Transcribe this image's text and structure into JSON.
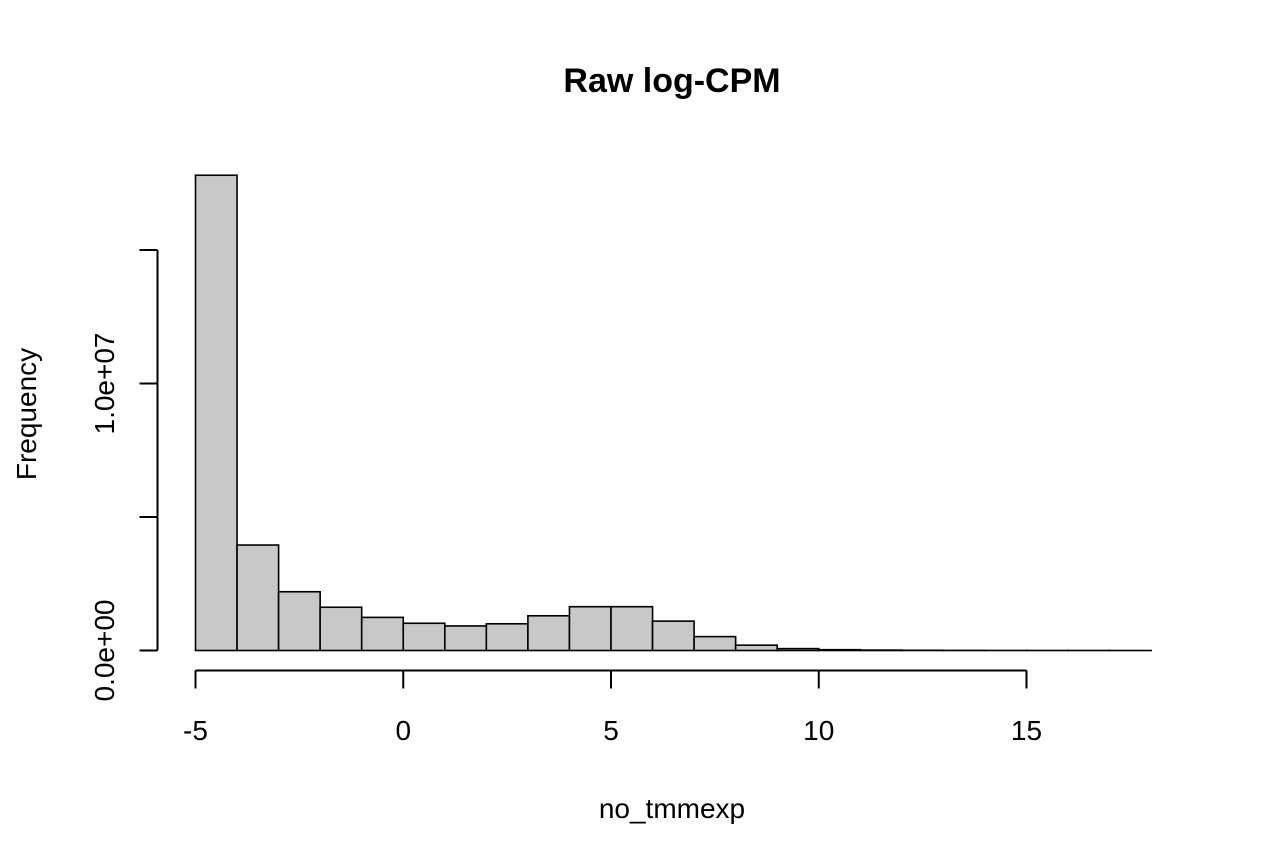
{
  "chart_data": {
    "type": "bar",
    "histogram": true,
    "title": "Raw log-CPM",
    "xlabel": "no_tmmexp",
    "ylabel": "Frequency",
    "bin_edges": [
      -5,
      -4,
      -3,
      -2,
      -1,
      0,
      1,
      2,
      3,
      4,
      5,
      6,
      7,
      8,
      9,
      10,
      11,
      12,
      13,
      14,
      15,
      16,
      17,
      18
    ],
    "values": [
      17800000,
      3950000,
      2200000,
      1620000,
      1240000,
      1020000,
      920000,
      1000000,
      1300000,
      1640000,
      1640000,
      1100000,
      520000,
      200000,
      70000,
      30000,
      15000,
      8000,
      4000,
      2000,
      1000,
      500,
      200
    ],
    "xlim": [
      -5,
      18
    ],
    "ylim": [
      0,
      15000000
    ],
    "x_ticks": [
      -5,
      0,
      5,
      10,
      15
    ],
    "x_tick_labels": [
      "-5",
      "0",
      "5",
      "10",
      "15"
    ],
    "y_ticks": [
      0,
      5000000,
      10000000,
      15000000
    ],
    "y_tick_labels": [
      "0.0e+00",
      "",
      "1.0e+07",
      ""
    ],
    "bar_fill": "#c8c8c8",
    "bar_stroke": "#000000",
    "grid": false
  }
}
